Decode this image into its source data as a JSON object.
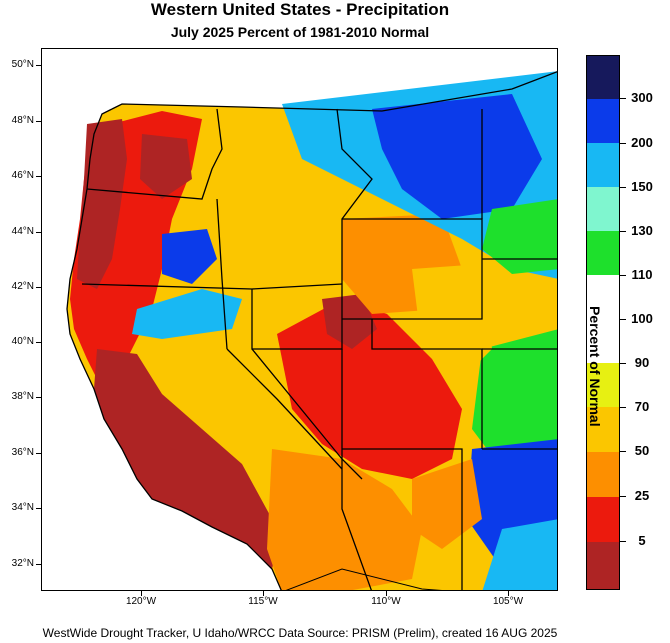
{
  "title": "Western United States - Precipitation",
  "subtitle": "July 2025  Percent of 1981-2010 Normal",
  "footer": "WestWide Drought Tracker, U Idaho/WRCC Data Source: PRISM (Prelim), created 16 AUG 2025",
  "map": {
    "lat_labels": [
      "50°N",
      "48°N",
      "46°N",
      "44°N",
      "42°N",
      "40°N",
      "38°N",
      "36°N",
      "34°N",
      "32°N"
    ],
    "lon_labels": [
      "120°W",
      "115°W",
      "110°W",
      "105°W"
    ]
  },
  "legend": {
    "title": "Percent of Normal",
    "labels": [
      "300",
      "200",
      "150",
      "130",
      "110",
      "100",
      "90",
      "70",
      "50",
      "25",
      "5"
    ],
    "colors": [
      "#16195c",
      "#0b3bea",
      "#18b8f3",
      "#7ff6cf",
      "#1ee02c",
      "#ffffff",
      "#ffffff",
      "#e7f012",
      "#fbc600",
      "#fd8f00",
      "#ec1a0d",
      "#ae2424"
    ]
  },
  "palette": {
    "dry_extreme": "#ae2424",
    "dry": "#ec1a0d",
    "orange": "#fd8f00",
    "gold": "#fbc600",
    "yellow": "#e7f012",
    "near_normal": "#ffffff",
    "green": "#1ee02c",
    "aqua": "#7ff6cf",
    "cyan": "#18b8f3",
    "blue": "#0b3bea",
    "navy": "#16195c",
    "ocean": "#ffffff"
  }
}
